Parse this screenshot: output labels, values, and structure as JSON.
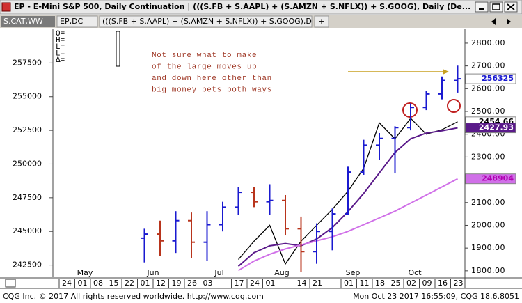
{
  "window_title": "EP - E-Mini S&P 500, Daily Continuation  |  (((S.FB + S.AAPL) + (S.AMZN + S.NFLX)) + S.GOOG), Daily (De...",
  "tabs": [
    "S.CAT,WW",
    "EP,DC",
    "(((S.FB + S.AAPL) + (S.AMZN + S.NFLX)) + S.GOOG),D",
    "+"
  ],
  "footer": {
    "left": "CQG Inc. © 2017 All rights reserved worldwide.  http://www.cqg.com",
    "right": "Mon Oct 23 2017 16:55:09, CQG 18.6.8051"
  },
  "chart_data": {
    "type": "ohlc",
    "info_labels": [
      "O=",
      "H=",
      "L=",
      "L=",
      "Δ="
    ],
    "annotation": [
      "Not sure what to make",
      "of the large moves up",
      "and down here other than",
      "big money bets both ways"
    ],
    "annotation_color": "#a03a28",
    "categories": [
      "24",
      "01",
      "08",
      "15",
      "22",
      "01",
      "12",
      "19",
      "26",
      "03",
      null,
      "17",
      "24",
      "01",
      null,
      "14",
      "21",
      null,
      "01",
      "11",
      "18",
      "25",
      "02",
      "09",
      "16",
      "23"
    ],
    "months": [
      "May",
      "Jun",
      "Jul",
      "Aug",
      "Sep",
      "Oct"
    ],
    "open": [
      null,
      null,
      null,
      null,
      null,
      244500,
      244800,
      244300,
      245800,
      244200,
      245500,
      246800,
      247900,
      247200,
      247300,
      245200,
      243500,
      245000,
      246300,
      249400,
      251400,
      251900,
      252700,
      254200,
      255200,
      256200
    ],
    "high": [
      null,
      null,
      null,
      null,
      null,
      245200,
      245800,
      246500,
      246400,
      246500,
      247200,
      248300,
      248300,
      248500,
      247700,
      246100,
      245600,
      246700,
      249800,
      251800,
      252300,
      252800,
      254500,
      255400,
      256500,
      257300
    ],
    "low": [
      null,
      null,
      null,
      null,
      null,
      242700,
      243200,
      243400,
      243000,
      242800,
      245000,
      246200,
      246800,
      246200,
      244700,
      242000,
      242600,
      243600,
      246200,
      249200,
      250300,
      249300,
      252500,
      254000,
      254800,
      255300
    ],
    "close": [
      null,
      null,
      null,
      null,
      null,
      244800,
      244300,
      245800,
      244200,
      245500,
      246800,
      247900,
      247200,
      247300,
      245200,
      243500,
      245000,
      246300,
      249400,
      251400,
      251900,
      252700,
      254200,
      255200,
      256200,
      256325
    ],
    "up_color": "#1a1ad0",
    "down_color": "#b8341c",
    "series": [
      {
        "color": "#000000",
        "axis": "y2",
        "values": [
          null,
          null,
          null,
          null,
          null,
          null,
          null,
          null,
          null,
          null,
          null,
          1850,
          1930,
          2000,
          1830,
          1930,
          2000,
          2070,
          2150,
          2250,
          2450,
          2380,
          2470,
          2400,
          2420,
          2454.66
        ]
      },
      {
        "color": "#5a1a8a",
        "axis": "y2",
        "values": [
          null,
          null,
          null,
          null,
          null,
          null,
          null,
          null,
          null,
          null,
          null,
          1820,
          1880,
          1910,
          1920,
          1910,
          1940,
          1990,
          2060,
          2140,
          2230,
          2320,
          2380,
          2405,
          2415,
          2427.93
        ]
      },
      {
        "color": "#d070e8",
        "values": [
          null,
          null,
          null,
          null,
          null,
          null,
          null,
          null,
          null,
          null,
          null,
          242100,
          242800,
          243300,
          243700,
          244000,
          244300,
          244600,
          245000,
          245500,
          246000,
          246500,
          247100,
          247700,
          248300,
          248904
        ]
      }
    ],
    "ylim": [
      241600,
      260000
    ],
    "yticks": [
      242500,
      245000,
      247500,
      250000,
      252500,
      255000,
      257500
    ],
    "y2lim": [
      1772,
      2861
    ],
    "y2ticks": [
      {
        "value": 1800,
        "label": "1800.00"
      },
      {
        "value": 1900,
        "label": "1900.00"
      },
      {
        "value": 2000,
        "label": "2000.00"
      },
      {
        "value": 2100,
        "label": "2100.00"
      },
      {
        "value": 2200,
        "label": "2200.00"
      },
      {
        "value": 2300,
        "label": "2300.00"
      },
      {
        "value": 2400,
        "label": "2400.00"
      },
      {
        "value": 2500,
        "label": "2500.00"
      },
      {
        "value": 2600,
        "label": "2600.00"
      },
      {
        "value": 2700,
        "label": "2700.00"
      },
      {
        "value": 2800,
        "label": "2800.00"
      }
    ]
  }
}
